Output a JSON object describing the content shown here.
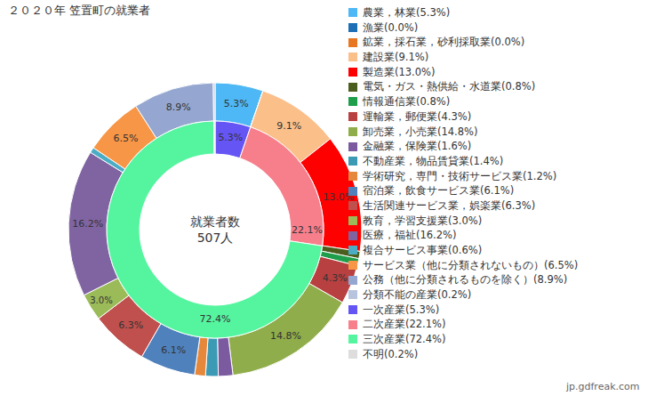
{
  "chart_data": {
    "type": "pie",
    "title": "２０２０年 笠置町の就業者",
    "legend": "right",
    "data_labels": true,
    "center_label": [
      "就業者数",
      "507人"
    ],
    "source": "jp.gdfreak.com",
    "series": [
      {
        "categories": [
          "農業，林業(5.3%)",
          "漁業(0.0%)",
          "鉱業，採石業，砂利採取業(0.0%)",
          "建設業(9.1%)",
          "製造業(13.0%)",
          "電気・ガス・熱供給・水道業(0.8%)",
          "情報通信業(0.8%)",
          "運輸業，郵便業(4.3%)",
          "卸売業，小売業(14.8%)",
          "金融業，保険業(1.6%)",
          "不動産業，物品賃貸業(1.4%)",
          "学術研究，専門・技術サービス業(1.2%)",
          "宿泊業，飲食サービス業(6.1%)",
          "生活関連サービス業，娯楽業(6.3%)",
          "教育，学習支援業(3.0%)",
          "医療，福祉(16.2%)",
          "複合サービス事業(0.6%)",
          "サービス業（他に分類されないもの）(6.5%)",
          "公務（他に分類されるものを除く）(8.9%)",
          "分類不能の産業(0.2%)"
        ],
        "values": [
          5.3,
          0.0,
          0.0,
          9.1,
          13.0,
          0.8,
          0.8,
          4.3,
          14.8,
          1.6,
          1.4,
          1.2,
          6.1,
          6.3,
          3.0,
          16.2,
          0.6,
          6.5,
          8.9,
          0.2
        ],
        "value_labels": [
          "5.3%",
          null,
          null,
          "9.1%",
          "13.0%",
          null,
          null,
          "4.3%",
          "14.8%",
          null,
          null,
          null,
          "6.1%",
          "6.3%",
          "3.0%",
          "16.2%",
          null,
          "6.5%",
          "8.9%",
          null
        ],
        "colors": [
          "#4db8f5",
          "#1c6fb5",
          "#e87722",
          "#fbbf8a",
          "#ff0000",
          "#4b5e1e",
          "#1e9e4a",
          "#b94040",
          "#8fad4a",
          "#7b5aa0",
          "#3d9ab5",
          "#e6883c",
          "#4f81bd",
          "#c0504d",
          "#9bbb59",
          "#8064a2",
          "#4bacc6",
          "#f79646",
          "#95a7d0",
          "#b8c4de"
        ]
      },
      {
        "categories": [
          "一次産業(5.3%)",
          "二次産業(22.1%)",
          "三次産業(72.4%)",
          "不明(0.2%)"
        ],
        "values": [
          5.3,
          22.1,
          72.4,
          0.2
        ],
        "value_labels": [
          "5.3%",
          "22.1%",
          "72.4%",
          null
        ],
        "colors": [
          "#6655f5",
          "#f77f8c",
          "#55f5a0",
          "#dddddd"
        ]
      }
    ]
  }
}
